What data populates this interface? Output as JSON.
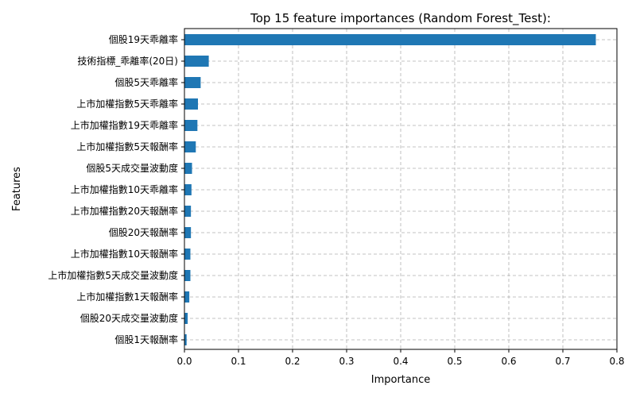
{
  "chart_data": {
    "type": "bar",
    "orientation": "horizontal",
    "title": "Top 15 feature importances (Random Forest_Test):",
    "xlabel": "Importance",
    "ylabel": "Features",
    "xlim": [
      0,
      0.8
    ],
    "xticks": [
      "0.0",
      "0.1",
      "0.2",
      "0.3",
      "0.4",
      "0.5",
      "0.6",
      "0.7",
      "0.8"
    ],
    "grid": true,
    "bar_color": "#1f77b4",
    "categories": [
      "個股19天乖離率",
      "技術指標_乖離率(20日)",
      "個股5天乖離率",
      "上市加權指數5天乖離率",
      "上市加權指數19天乖離率",
      "上市加權指數5天報酬率",
      "個股5天成交量波動度",
      "上市加權指數10天乖離率",
      "上市加權指數20天報酬率",
      "個股20天報酬率",
      "上市加權指數10天報酬率",
      "上市加權指數5天成交量波動度",
      "上市加權指數1天報酬率",
      "個股20天成交量波動度",
      "個股1天報酬率"
    ],
    "values": [
      0.761,
      0.045,
      0.03,
      0.025,
      0.024,
      0.021,
      0.014,
      0.013,
      0.012,
      0.012,
      0.011,
      0.011,
      0.009,
      0.006,
      0.004
    ]
  }
}
